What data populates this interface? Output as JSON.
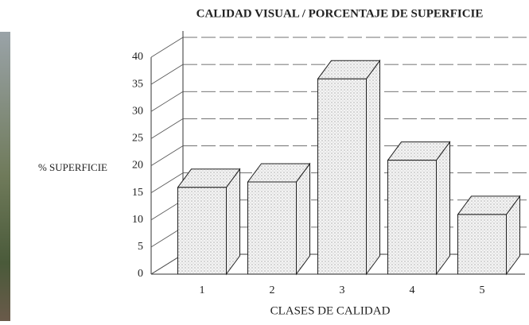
{
  "chart_data": {
    "type": "bar3d",
    "title": "CALIDAD VISUAL / PORCENTAJE DE SUPERFICIE",
    "y_label": "% SUPERFICIE",
    "x_label": "CLASES DE CALIDAD",
    "categories": [
      "1",
      "2",
      "3",
      "4",
      "5"
    ],
    "values": [
      16,
      17,
      36,
      21,
      11
    ],
    "ylim": [
      0,
      40
    ],
    "yticks": [
      0,
      5,
      10,
      15,
      20,
      25,
      30,
      35,
      40
    ],
    "grid": true
  }
}
